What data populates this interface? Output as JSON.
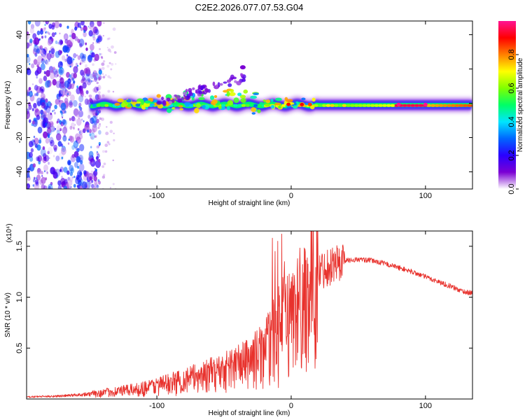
{
  "title": "C2E2.2026.077.07.53.G04",
  "colors": {
    "snr_line": "#e8322d",
    "frame": "#000000",
    "background": "#ffffff"
  },
  "chart_data": [
    {
      "type": "heatmap",
      "name": "spectrogram",
      "xlabel": "Height of straight line (km)",
      "ylabel": "Frequency (Hz)",
      "xlim": [
        -197,
        135
      ],
      "ylim": [
        -50,
        48
      ],
      "x_ticks": [
        -100,
        0,
        100
      ],
      "y_ticks": [
        -40,
        -20,
        0,
        20,
        40
      ],
      "x_tick_labels": [
        "-100",
        "0",
        "100"
      ],
      "y_tick_labels": [
        "-40",
        "-20",
        "0",
        "20",
        "40"
      ],
      "colorbar": {
        "label": "Normalized spectral amplitude",
        "range": [
          0,
          1
        ],
        "ticks": [
          "0.0",
          "0.2",
          "0.4",
          "0.6",
          "0.8"
        ],
        "tick_values": [
          0.0,
          0.2,
          0.4,
          0.6,
          0.8
        ],
        "colormap": [
          "#ffffff",
          "#7b00d4",
          "#2b00ff",
          "#0066ff",
          "#00e5ff",
          "#00ff66",
          "#7fff00",
          "#ffff00",
          "#ff8000",
          "#ff0000",
          "#ff1493"
        ]
      },
      "features": [
        {
          "label": "broadband noise",
          "x_range": [
            -197,
            -150
          ],
          "freq_range": [
            -50,
            48
          ],
          "amplitude": 0.15
        },
        {
          "label": "main trace",
          "x_range": [
            -150,
            135
          ],
          "freq_center": 0,
          "freq_width": 3,
          "amplitude_peak": 0.95,
          "amplitude_peak_at": [
            85,
            100
          ]
        },
        {
          "label": "rising branch",
          "x_range": [
            -100,
            -35
          ],
          "freq_range": [
            0,
            20
          ],
          "amplitude": 0.2
        }
      ]
    },
    {
      "type": "line",
      "name": "snr",
      "xlabel": "Height of straight line (km)",
      "ylabel": "SNR (10 * v/v)",
      "y_multiplier_label": "(x10⁴)",
      "xlim": [
        -197,
        135
      ],
      "ylim": [
        0,
        1.65
      ],
      "x_ticks": [
        -100,
        0,
        100
      ],
      "y_ticks": [
        0.5,
        1.0,
        1.5
      ],
      "x_tick_labels": [
        "-100",
        "0",
        "100"
      ],
      "y_tick_labels": [
        "0.5",
        "1.0",
        "1.5"
      ],
      "series": [
        {
          "name": "SNR",
          "envelope_x": [
            -197,
            -170,
            -150,
            -130,
            -115,
            -100,
            -85,
            -70,
            -55,
            -40,
            -30,
            -20,
            -15,
            -10,
            -5,
            0,
            5,
            10,
            15,
            20,
            30,
            40,
            50,
            60,
            70,
            80,
            90,
            100,
            110,
            120,
            125,
            130,
            135
          ],
          "envelope_y": [
            0.02,
            0.03,
            0.05,
            0.08,
            0.1,
            0.14,
            0.18,
            0.23,
            0.28,
            0.35,
            0.4,
            0.5,
            0.6,
            0.7,
            0.8,
            0.85,
            0.95,
            1.05,
            1.15,
            1.25,
            1.32,
            1.36,
            1.37,
            1.36,
            1.33,
            1.29,
            1.25,
            1.2,
            1.15,
            1.1,
            1.07,
            1.05,
            1.04
          ],
          "spike_points": [
            [
              -14,
              1.58
            ],
            [
              -12,
              1.45
            ],
            [
              -10,
              1.55
            ],
            [
              -7,
              1.62
            ],
            [
              -5,
              1.35
            ],
            [
              10,
              0.45
            ]
          ]
        }
      ]
    }
  ]
}
